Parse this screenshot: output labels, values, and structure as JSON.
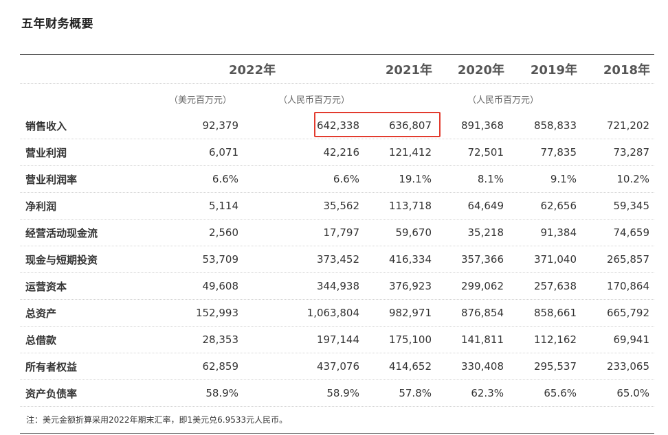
{
  "title": "五年财务概要",
  "years": [
    "2022年",
    "2021年",
    "2020年",
    "2019年",
    "2018年"
  ],
  "units": {
    "usd": "（美元百万元）",
    "rmb_2022": "（人民币百万元）",
    "rmb_hist": "（人民币百万元）"
  },
  "rows": [
    {
      "label": "销售收入",
      "usd": "92,379",
      "v2022": "642,338",
      "v2021": "636,807",
      "v2020": "891,368",
      "v2019": "858,833",
      "v2018": "721,202"
    },
    {
      "label": "营业利润",
      "usd": "6,071",
      "v2022": "42,216",
      "v2021": "121,412",
      "v2020": "72,501",
      "v2019": "77,835",
      "v2018": "73,287"
    },
    {
      "label": "营业利润率",
      "usd": "6.6%",
      "v2022": "6.6%",
      "v2021": "19.1%",
      "v2020": "8.1%",
      "v2019": "9.1%",
      "v2018": "10.2%"
    },
    {
      "label": "净利润",
      "usd": "5,114",
      "v2022": "35,562",
      "v2021": "113,718",
      "v2020": "64,649",
      "v2019": "62,656",
      "v2018": "59,345"
    },
    {
      "label": "经营活动现金流",
      "usd": "2,560",
      "v2022": "17,797",
      "v2021": "59,670",
      "v2020": "35,218",
      "v2019": "91,384",
      "v2018": "74,659"
    },
    {
      "label": "现金与短期投资",
      "usd": "53,709",
      "v2022": "373,452",
      "v2021": "416,334",
      "v2020": "357,366",
      "v2019": "371,040",
      "v2018": "265,857"
    },
    {
      "label": "运营资本",
      "usd": "49,608",
      "v2022": "344,938",
      "v2021": "376,923",
      "v2020": "299,062",
      "v2019": "257,638",
      "v2018": "170,864"
    },
    {
      "label": "总资产",
      "usd": "152,993",
      "v2022": "1,063,804",
      "v2021": "982,971",
      "v2020": "876,854",
      "v2019": "858,661",
      "v2018": "665,792"
    },
    {
      "label": "总借款",
      "usd": "28,353",
      "v2022": "197,144",
      "v2021": "175,100",
      "v2020": "141,811",
      "v2019": "112,162",
      "v2018": "69,941"
    },
    {
      "label": "所有者权益",
      "usd": "62,859",
      "v2022": "437,076",
      "v2021": "414,652",
      "v2020": "330,408",
      "v2019": "295,537",
      "v2018": "233,065"
    },
    {
      "label": "资产负债率",
      "usd": "58.9%",
      "v2022": "58.9%",
      "v2021": "57.8%",
      "v2020": "62.3%",
      "v2019": "65.6%",
      "v2018": "65.0%"
    }
  ],
  "note": "注：美元金额折算采用2022年期末汇率，即1美元兑6.9533元人民币。",
  "colors": {
    "highlight_box": "#e23b2e",
    "rule": "#555555"
  }
}
